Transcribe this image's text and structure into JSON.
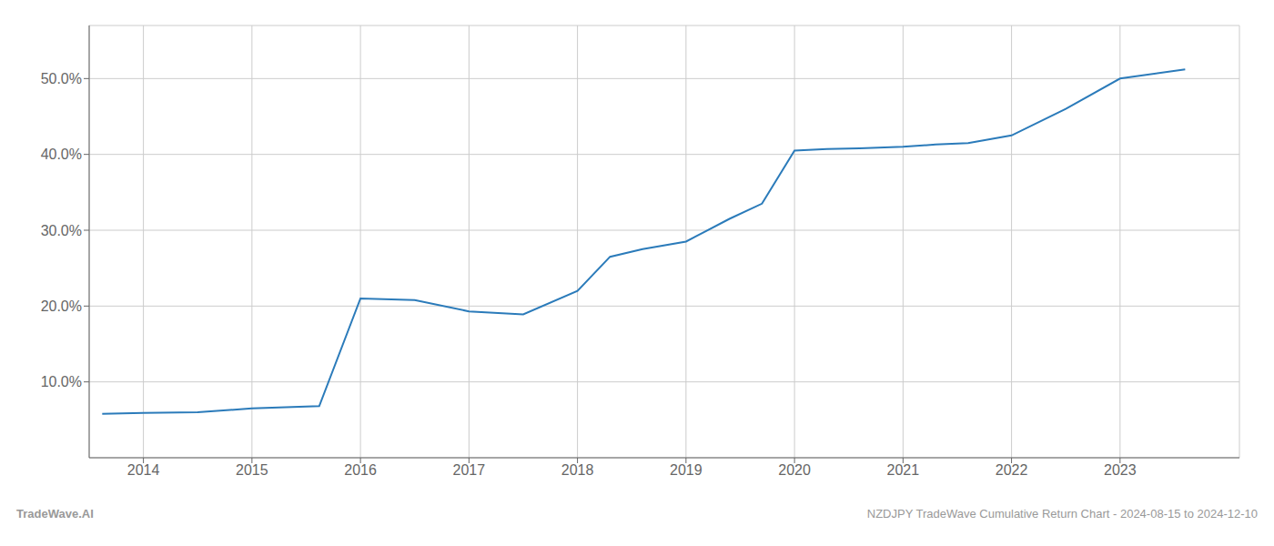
{
  "chart_data": {
    "type": "line",
    "x": [
      2013.62,
      2014.0,
      2014.5,
      2015.0,
      2015.62,
      2016.0,
      2016.5,
      2017.0,
      2017.5,
      2018.0,
      2018.3,
      2018.6,
      2019.0,
      2019.4,
      2019.7,
      2020.0,
      2020.3,
      2020.6,
      2021.0,
      2021.3,
      2021.6,
      2022.0,
      2022.5,
      2023.0,
      2023.6
    ],
    "values": [
      5.8,
      5.9,
      6.0,
      6.5,
      6.8,
      21.0,
      20.8,
      19.3,
      18.9,
      22.0,
      26.5,
      27.5,
      28.5,
      31.5,
      33.5,
      40.5,
      40.7,
      40.8,
      41.0,
      41.3,
      41.5,
      42.5,
      46.0,
      50.0,
      51.2
    ],
    "color": "#2b7bba",
    "xlim": [
      2013.5,
      2024.1
    ],
    "xticks": [
      2014,
      2015,
      2016,
      2017,
      2018,
      2019,
      2020,
      2021,
      2022,
      2023
    ],
    "ylim": [
      0,
      57
    ],
    "yticks": [
      {
        "value": 10.0,
        "label": "10.0%"
      },
      {
        "value": 20.0,
        "label": "20.0%"
      },
      {
        "value": 30.0,
        "label": "30.0%"
      },
      {
        "value": 40.0,
        "label": "40.0%"
      },
      {
        "value": 50.0,
        "label": "50.0%"
      }
    ],
    "grid": true,
    "annotations": [
      "TradeWave.AI",
      "NZDJPY TradeWave Cumulative Return Chart - 2024-08-15 to 2024-12-10"
    ]
  }
}
